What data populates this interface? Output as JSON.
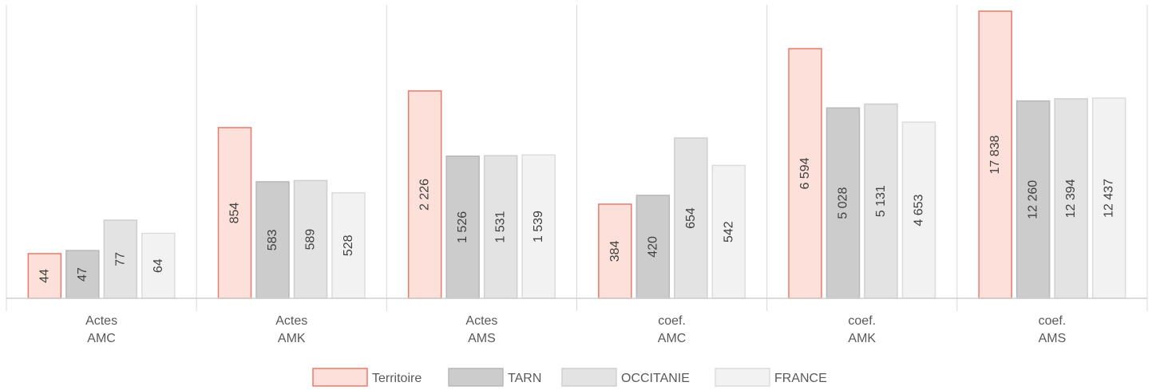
{
  "chart_data": {
    "type": "bar",
    "categories": [
      [
        "Actes",
        "AMC"
      ],
      [
        "Actes",
        "AMK"
      ],
      [
        "Actes",
        "AMS"
      ],
      [
        "coef.",
        "AMC"
      ],
      [
        "coef.",
        "AMK"
      ],
      [
        "coef.",
        "AMS"
      ]
    ],
    "series": [
      {
        "name": "Territoire",
        "values": [
          44,
          854,
          2226,
          384,
          6594,
          17838
        ],
        "labels": [
          "44",
          "854",
          "2 226",
          "384",
          "6 594",
          "17 838"
        ],
        "fill": "#fde0da",
        "stroke": "#e87b6b"
      },
      {
        "name": "TARN",
        "values": [
          47,
          583,
          1526,
          420,
          5028,
          12260
        ],
        "labels": [
          "47",
          "583",
          "1 526",
          "420",
          "5 028",
          "12 260"
        ],
        "fill": "#cccccc",
        "stroke": "#b8b8b8"
      },
      {
        "name": "OCCITANIE",
        "values": [
          77,
          589,
          1531,
          654,
          5131,
          12394
        ],
        "labels": [
          "77",
          "589",
          "1 531",
          "654",
          "5 131",
          "12 394"
        ],
        "fill": "#e3e3e3",
        "stroke": "#cfcfcf"
      },
      {
        "name": "FRANCE",
        "values": [
          64,
          528,
          1539,
          542,
          4653,
          12437
        ],
        "labels": [
          "64",
          "528",
          "1 539",
          "542",
          "4 653",
          "12 437"
        ],
        "fill": "#f2f2f2",
        "stroke": "#dcdcdc"
      }
    ],
    "grid": false,
    "legend": "bottom",
    "title": "",
    "xlabel": "",
    "ylabel": ""
  }
}
